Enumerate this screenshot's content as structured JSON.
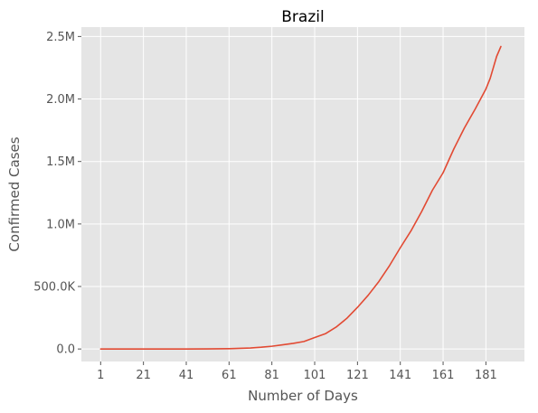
{
  "chart_data": {
    "type": "line",
    "title": "Brazil",
    "xlabel": "Number of Days",
    "ylabel": "Confirmed Cases",
    "xlim": [
      -8,
      199
    ],
    "ylim": [
      -100000,
      2575000
    ],
    "grid": true,
    "x_ticks": [
      1,
      21,
      41,
      61,
      81,
      101,
      121,
      141,
      161,
      181
    ],
    "x_tick_labels": [
      "1",
      "21",
      "41",
      "61",
      "81",
      "101",
      "121",
      "141",
      "161",
      "181"
    ],
    "y_ticks": [
      0,
      500000,
      1000000,
      1500000,
      2000000,
      2500000
    ],
    "y_tick_labels": [
      "0.0",
      "500.0K",
      "1.0M",
      "1.5M",
      "2.0M",
      "2.5M"
    ],
    "series": [
      {
        "color": "#e24a33",
        "x": [
          1,
          21,
          41,
          51,
          61,
          66,
          71,
          76,
          81,
          86,
          91,
          96,
          101,
          106,
          111,
          116,
          121,
          126,
          131,
          136,
          141,
          146,
          151,
          156,
          161,
          166,
          171,
          176,
          181,
          183,
          186,
          188
        ],
        "y": [
          0,
          0,
          0,
          500,
          2500,
          5000,
          8000,
          14000,
          22000,
          33000,
          45000,
          60000,
          92000,
          122000,
          175000,
          245000,
          333000,
          430000,
          540000,
          668000,
          810000,
          945000,
          1100000,
          1270000,
          1410000,
          1600000,
          1770000,
          1920000,
          2080000,
          2165000,
          2340000,
          2420000
        ]
      }
    ]
  }
}
